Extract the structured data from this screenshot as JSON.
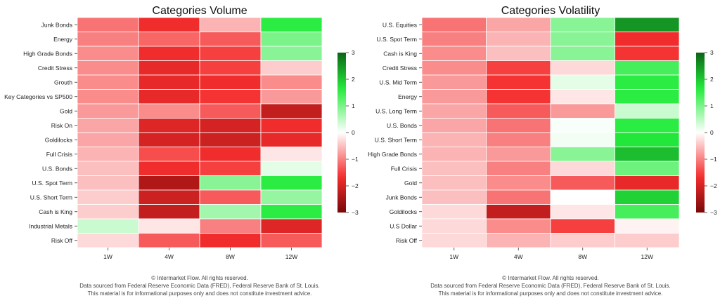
{
  "scale": {
    "min": -3,
    "max": 3,
    "ticks": [
      3,
      2,
      1,
      0,
      -1,
      -2,
      -3
    ]
  },
  "footer": [
    "© Intermarket Flow. All rights reserved.",
    "Data sourced from Federal Reserve Economic Data (FRED), Federal Reserve Bank of St. Louis.",
    "This material is for informational purposes only and does not constitute investment advice."
  ],
  "chart_data": [
    {
      "type": "heatmap",
      "title": "Categories Volume",
      "xlabel": "",
      "ylabel": "",
      "columns": [
        "1W",
        "4W",
        "8W",
        "12W"
      ],
      "rows": [
        "Junk Bonds",
        "Energy",
        "High Grade Bonds",
        "Credit Stress",
        "Grouth",
        "Key Categories vs SP500",
        "Gold",
        "Risk On",
        "Goldilocks",
        "Full Crisis",
        "U.S. Bonds",
        "U.S. Spot Term",
        "U.S. Short Term",
        "Cash is King",
        "Industrial Metals",
        "Risk Off"
      ],
      "values": [
        [
          -1.1,
          -1.7,
          -0.6,
          1.6
        ],
        [
          -1.0,
          -1.2,
          -1.3,
          1.0
        ],
        [
          -0.9,
          -1.7,
          -1.5,
          0.9
        ],
        [
          -0.9,
          -1.8,
          -1.5,
          -0.4
        ],
        [
          -0.9,
          -1.8,
          -1.7,
          -0.9
        ],
        [
          -0.9,
          -1.8,
          -1.6,
          -0.8
        ],
        [
          -0.8,
          -0.9,
          -1.3,
          -2.2
        ],
        [
          -0.7,
          -1.9,
          -2.0,
          -1.7
        ],
        [
          -0.7,
          -2.0,
          -2.1,
          -1.8
        ],
        [
          -0.6,
          -1.4,
          -1.7,
          -0.2
        ],
        [
          -0.5,
          -1.7,
          -1.5,
          0.2
        ],
        [
          -0.5,
          -2.4,
          0.9,
          1.6
        ],
        [
          -0.4,
          -2.1,
          -1.3,
          0.8
        ],
        [
          -0.4,
          -2.2,
          0.7,
          1.6
        ],
        [
          0.4,
          -0.2,
          -1.0,
          -1.9
        ],
        [
          -0.3,
          -1.3,
          -1.7,
          -1.3
        ]
      ],
      "colorbar_ticks": [
        3,
        2,
        1,
        0,
        -1,
        -2,
        -3
      ],
      "vlim": [
        -3,
        3
      ]
    },
    {
      "type": "heatmap",
      "title": "Categories Volatility",
      "xlabel": "",
      "ylabel": "",
      "columns": [
        "1W",
        "4W",
        "8W",
        "12W"
      ],
      "rows": [
        "U.S. Equities",
        "U.S. Spot Term",
        "Cash is King",
        "Credit Stress",
        "U.S. Mid Term",
        "Energy",
        "U.S. Long Term",
        "U.S. Bonds",
        "U.S. Short Term",
        "High Grade Bonds",
        "Full Crisis",
        "Gold",
        "Junk Bonds",
        "Goldilocks",
        "U.S Dollar",
        "Risk Off"
      ],
      "values": [
        [
          -1.1,
          -0.7,
          0.9,
          2.5
        ],
        [
          -1.0,
          -0.6,
          0.9,
          -1.7
        ],
        [
          -0.9,
          -0.5,
          0.9,
          -1.6
        ],
        [
          -0.9,
          -1.5,
          -0.3,
          1.4
        ],
        [
          -0.8,
          -1.6,
          0.2,
          1.6
        ],
        [
          -0.8,
          -1.6,
          -0.2,
          1.6
        ],
        [
          -0.7,
          -1.3,
          -0.8,
          0.4
        ],
        [
          -0.7,
          -1.1,
          0.05,
          1.6
        ],
        [
          -0.6,
          -1.0,
          0.1,
          1.7
        ],
        [
          -0.6,
          -0.8,
          0.9,
          2.1
        ],
        [
          -0.5,
          -1.0,
          -0.3,
          1.1
        ],
        [
          -0.5,
          -0.9,
          -1.3,
          -1.8
        ],
        [
          -0.5,
          -1.1,
          0.0,
          1.9
        ],
        [
          -0.3,
          -2.2,
          -0.2,
          1.4
        ],
        [
          -0.3,
          -0.9,
          -1.5,
          -0.1
        ],
        [
          -0.3,
          -0.6,
          -0.4,
          -0.4
        ]
      ],
      "colorbar_ticks": [
        3,
        2,
        1,
        0,
        -1,
        -2,
        -3
      ],
      "vlim": [
        -3,
        3
      ]
    }
  ]
}
